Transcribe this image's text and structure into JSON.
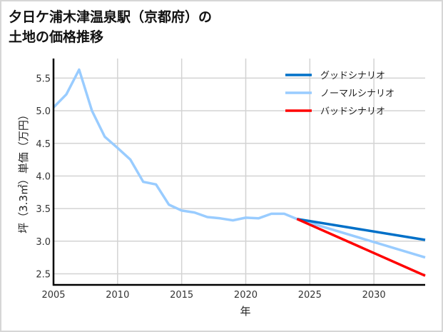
{
  "title_line1": "夕日ケ浦木津温泉駅（京都府）の",
  "title_line2": "土地の価格推移",
  "chart_data": {
    "type": "line",
    "title": "夕日ケ浦木津温泉駅（京都府）の土地の価格推移",
    "xlabel": "年",
    "ylabel": "坪（3.3㎡）単価（万円）",
    "xlim": [
      2005,
      2034
    ],
    "ylim": [
      2.33,
      5.8
    ],
    "x_ticks": [
      2005,
      2010,
      2015,
      2020,
      2025,
      2030
    ],
    "y_ticks": [
      2.5,
      3.0,
      3.5,
      4.0,
      4.5,
      5.0,
      5.5
    ],
    "grid": true,
    "legend_position": "upper right",
    "series": [
      {
        "name": "ノーマルシナリオ",
        "role": "historical",
        "color": "#99ccff",
        "x": [
          2005,
          2006,
          2007,
          2008,
          2009,
          2010,
          2011,
          2012,
          2013,
          2014,
          2015,
          2016,
          2017,
          2018,
          2019,
          2020,
          2021,
          2022,
          2023,
          2024
        ],
        "values": [
          5.05,
          5.25,
          5.63,
          5.0,
          4.6,
          4.43,
          4.25,
          3.91,
          3.87,
          3.56,
          3.47,
          3.44,
          3.37,
          3.35,
          3.32,
          3.36,
          3.35,
          3.42,
          3.42,
          3.34
        ]
      },
      {
        "name": "グッドシナリオ",
        "color": "#0070c8",
        "x": [
          2024,
          2034
        ],
        "values": [
          3.34,
          3.02
        ]
      },
      {
        "name": "ノーマルシナリオ",
        "color": "#99ccff",
        "x": [
          2024,
          2034
        ],
        "values": [
          3.34,
          2.75
        ]
      },
      {
        "name": "バッドシナリオ",
        "color": "#ff0000",
        "x": [
          2024,
          2034
        ],
        "values": [
          3.34,
          2.47
        ]
      }
    ],
    "legend": [
      {
        "label": "グッドシナリオ",
        "color": "#0070c8"
      },
      {
        "label": "ノーマルシナリオ",
        "color": "#99ccff"
      },
      {
        "label": "バッドシナリオ",
        "color": "#ff0000"
      }
    ]
  }
}
